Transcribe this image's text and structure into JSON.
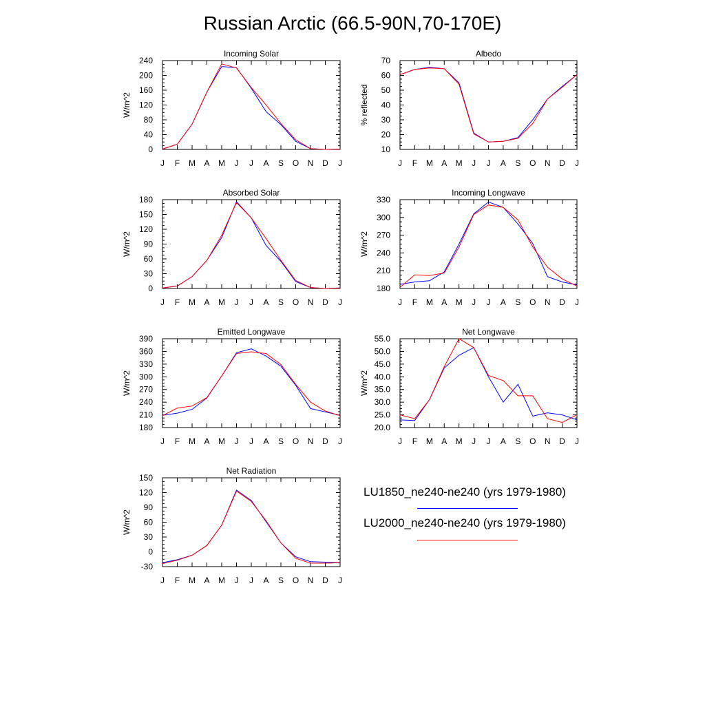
{
  "title": "Russian Arctic (66.5-90N,70-170E)",
  "months": [
    "J",
    "F",
    "M",
    "A",
    "M",
    "J",
    "J",
    "A",
    "S",
    "O",
    "N",
    "D",
    "J"
  ],
  "colors": {
    "LU1850": "#0000ff",
    "LU2000": "#ff0000"
  },
  "legend": [
    {
      "label": "LU1850_ne240-ne240 (yrs 1979-1980)",
      "color": "#0000ff"
    },
    {
      "label": "LU2000_ne240-ne240 (yrs 1979-1980)",
      "color": "#ff0000"
    }
  ],
  "chart_data": [
    {
      "type": "line",
      "title": "Incoming Solar",
      "ylabel": "W/m^2",
      "ylim": [
        0,
        240
      ],
      "yticks": [
        0,
        40,
        80,
        120,
        160,
        200,
        240
      ],
      "series": [
        {
          "name": "LU1850_ne240-ne240 (yrs 1979-1980)",
          "values": [
            1,
            14,
            68,
            155,
            224,
            221,
            165,
            102,
            67,
            22,
            2,
            0,
            1
          ]
        },
        {
          "name": "LU2000_ne240-ne240 (yrs 1979-1980)",
          "values": [
            1,
            14,
            68,
            155,
            231,
            220,
            167,
            120,
            70,
            26,
            2,
            0,
            1
          ]
        }
      ]
    },
    {
      "type": "line",
      "title": "Albedo",
      "ylabel": "% reflected",
      "ylim": [
        10,
        70
      ],
      "yticks": [
        10,
        20,
        30,
        40,
        50,
        60,
        70
      ],
      "series": [
        {
          "name": "LU1850_ne240-ne240 (yrs 1979-1980)",
          "values": [
            60.5,
            64,
            65.5,
            64.5,
            55,
            21,
            15,
            15.5,
            18,
            30,
            44,
            52.5,
            60.5
          ]
        },
        {
          "name": "LU2000_ne240-ne240 (yrs 1979-1980)",
          "values": [
            60.5,
            64,
            65,
            64.5,
            54,
            20.5,
            15,
            15.5,
            17.5,
            27.5,
            44,
            52,
            60.5
          ]
        }
      ]
    },
    {
      "type": "line",
      "title": "Absorbed Solar",
      "ylabel": "W/m^2",
      "ylim": [
        0,
        180
      ],
      "yticks": [
        0,
        30,
        60,
        90,
        120,
        150,
        180
      ],
      "series": [
        {
          "name": "LU1850_ne240-ne240 (yrs 1979-1980)",
          "values": [
            1,
            5,
            24,
            57,
            103,
            176,
            143,
            87,
            55,
            14,
            2,
            0,
            1
          ]
        },
        {
          "name": "LU2000_ne240-ne240 (yrs 1979-1980)",
          "values": [
            1,
            5,
            24,
            57,
            108,
            174,
            143,
            101,
            57,
            16,
            2,
            0,
            1
          ]
        }
      ]
    },
    {
      "type": "line",
      "title": "Incoming Longwave",
      "ylabel": "W/m^2",
      "ylim": [
        180,
        330
      ],
      "yticks": [
        180,
        210,
        240,
        270,
        300,
        330
      ],
      "series": [
        {
          "name": "LU1850_ne240-ne240 (yrs 1979-1980)",
          "values": [
            187,
            191,
            193,
            208,
            255,
            306,
            326,
            317,
            289,
            256,
            200,
            191,
            186
          ]
        },
        {
          "name": "LU2000_ne240-ne240 (yrs 1979-1980)",
          "values": [
            182,
            203,
            202,
            206,
            250,
            305,
            321,
            317,
            296,
            250,
            216,
            196,
            184
          ]
        }
      ]
    },
    {
      "type": "line",
      "title": "Emitted Longwave",
      "ylabel": "W/m^2",
      "ylim": [
        180,
        390
      ],
      "yticks": [
        180,
        210,
        240,
        270,
        300,
        330,
        360,
        390
      ],
      "series": [
        {
          "name": "LU1850_ne240-ne240 (yrs 1979-1980)",
          "values": [
            209,
            214,
            223,
            250,
            302,
            357,
            366,
            349,
            325,
            280,
            225,
            217,
            209
          ]
        },
        {
          "name": "LU2000_ne240-ne240 (yrs 1979-1980)",
          "values": [
            208,
            226,
            231,
            251,
            302,
            355,
            359,
            355,
            329,
            282,
            240,
            219,
            208
          ]
        }
      ]
    },
    {
      "type": "line",
      "title": "Net Longwave",
      "ylabel": "W/m^2",
      "ylim": [
        20,
        55
      ],
      "yticks": [
        20.0,
        25.0,
        30.0,
        35.0,
        40.0,
        45.0,
        50.0,
        55.0
      ],
      "series": [
        {
          "name": "LU1850_ne240-ne240 (yrs 1979-1980)",
          "values": [
            23,
            22.8,
            31,
            43.5,
            48.5,
            51.5,
            40,
            30,
            37,
            24.5,
            25.8,
            25,
            23
          ]
        },
        {
          "name": "LU2000_ne240-ne240 (yrs 1979-1980)",
          "values": [
            25,
            23.5,
            31,
            44,
            55,
            51.5,
            40.5,
            38.5,
            32.5,
            32.5,
            23.5,
            22,
            25
          ]
        }
      ]
    },
    {
      "type": "line",
      "title": "Net Radiation",
      "ylabel": "W/m^2",
      "ylim": [
        -30,
        150
      ],
      "yticks": [
        -30,
        0,
        30,
        60,
        90,
        120,
        150
      ],
      "series": [
        {
          "name": "LU1850_ne240-ne240 (yrs 1979-1980)",
          "values": [
            -22,
            -16,
            -7,
            13,
            54,
            125,
            104,
            61,
            18,
            -10,
            -20,
            -21,
            -22
          ]
        },
        {
          "name": "LU2000_ne240-ne240 (yrs 1979-1980)",
          "values": [
            -24,
            -17,
            -7,
            13,
            54,
            123,
            102,
            63,
            18,
            -13,
            -23,
            -23,
            -22
          ]
        }
      ]
    }
  ]
}
